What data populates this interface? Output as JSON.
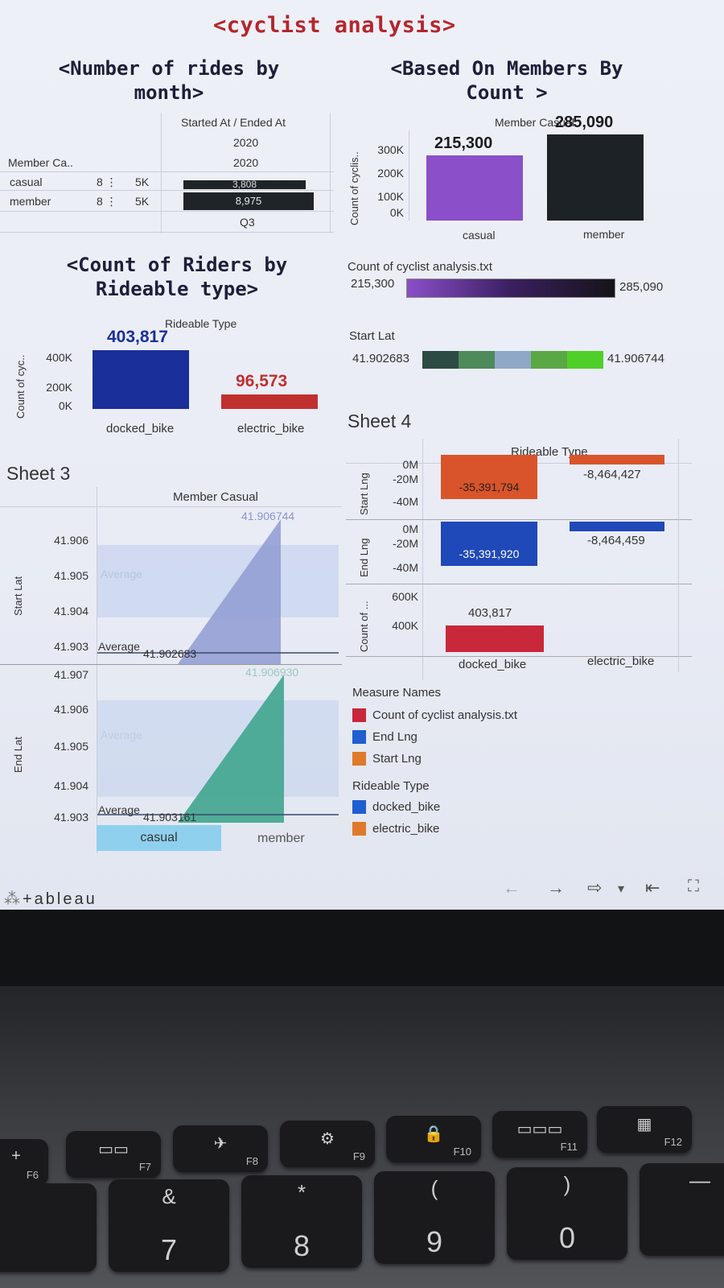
{
  "dashboard_title": "<cyclist analysis>",
  "rides_by_month": {
    "title_line1": "<Number of rides by",
    "title_line2": "month>",
    "col_header": "Started At / Ended At",
    "year1": "2020",
    "year2": "2020",
    "quarter": "Q3",
    "row_header": "Member Ca..",
    "rows": [
      {
        "label": "casual",
        "value": "3,808",
        "scale": "5K"
      },
      {
        "label": "member",
        "value": "8,975",
        "scale": "5K"
      }
    ]
  },
  "members_by_count": {
    "title_line1": "<Based On Members By",
    "title_line2": "Count >",
    "header": "Member Casual",
    "ylabel": "Count of cyclis..",
    "ticks": [
      "300K",
      "200K",
      "100K",
      "0K"
    ],
    "chart_data": {
      "type": "bar",
      "categories": [
        "casual",
        "member"
      ],
      "values": [
        215300,
        285090
      ],
      "value_labels": [
        "215,300",
        "285,090"
      ],
      "ylim": [
        0,
        320000
      ],
      "colors": [
        "#8a4fc9",
        "#1d2226"
      ]
    }
  },
  "count_legend": {
    "title": "Count of cyclist analysis.txt",
    "min": "215,300",
    "max": "285,090"
  },
  "start_lat_legend": {
    "title": "Start Lat",
    "min": "41.902683",
    "max": "41.906744",
    "colors": [
      "#2c4b43",
      "#4f8a5a",
      "#8fa8c7",
      "#5aa845",
      "#4fcf2a"
    ]
  },
  "riders_by_type": {
    "title_line1": "<Count of Riders by",
    "title_line2": "Rideable type>",
    "header": "Rideable Type",
    "ylabel": "Count of cyc..",
    "ticks": [
      "400K",
      "200K",
      "0K"
    ],
    "chart_data": {
      "type": "bar",
      "categories": [
        "docked_bike",
        "electric_bike"
      ],
      "values": [
        403817,
        96573
      ],
      "value_labels": [
        "403,817",
        "96,573"
      ],
      "ylim": [
        0,
        440000
      ],
      "colors": [
        "#1a2f9a",
        "#c0302e"
      ]
    }
  },
  "sheet3": {
    "title": "Sheet 3",
    "header": "Member Casual",
    "categories": [
      "casual",
      "member"
    ],
    "start_lat": {
      "label": "Start Lat",
      "ticks": [
        "41.906",
        "41.905",
        "41.904",
        "41.903"
      ],
      "average_label": "Average",
      "average_value": "41.902683",
      "peak_value": "41.906744",
      "color": "#8f9bd2"
    },
    "end_lat": {
      "label": "End Lat",
      "ticks": [
        "41.907",
        "41.906",
        "41.905",
        "41.904",
        "41.903"
      ],
      "average_label": "Average",
      "average_value": "41.903161",
      "peak_value": "41.906930",
      "color": "#3fa58e"
    }
  },
  "sheet4": {
    "title": "Sheet 4",
    "header": "Rideable Type",
    "categories": [
      "docked_bike",
      "electric_bike"
    ],
    "rows": [
      {
        "label": "Start Lng",
        "ticks": [
          "0M",
          "-20M",
          "-40M"
        ],
        "values": [
          "-35,391,794",
          "-8,464,427"
        ],
        "color": "#d9542b"
      },
      {
        "label": "End Lng",
        "ticks": [
          "0M",
          "-20M",
          "-40M"
        ],
        "values": [
          "-35,391,920",
          "-8,464,459"
        ],
        "color": "#1f48b8"
      },
      {
        "label": "Count of ...",
        "ticks": [
          "600K",
          "400K"
        ],
        "values": [
          "403,817",
          ""
        ],
        "color": "#c8283a"
      }
    ],
    "legend_measures_title": "Measure Names",
    "legend_measures": [
      {
        "label": "Count of cyclist analysis.txt",
        "color": "#c8283a"
      },
      {
        "label": "End Lng",
        "color": "#1f5fd0"
      },
      {
        "label": "Start Lng",
        "color": "#e07a2a"
      }
    ],
    "legend_types_title": "Rideable Type",
    "legend_types": [
      {
        "label": "docked_bike",
        "color": "#1f5fd0"
      },
      {
        "label": "electric_bike",
        "color": "#e07a2a"
      }
    ]
  },
  "footer": {
    "logo": "+ableau",
    "nav_back": "←",
    "nav_forward": "→",
    "nav_share": "⇨",
    "nav_dropdown": "▾",
    "nav_first": "⇤",
    "nav_fullscreen": "⛶"
  },
  "keyboard": {
    "keys": [
      {
        "fn": "F6",
        "sym": "+",
        "big": ""
      },
      {
        "fn": "F7",
        "sym": "▭▭",
        "big": ""
      },
      {
        "fn": "F8",
        "sym": "✈",
        "big": ""
      },
      {
        "fn": "F9",
        "sym": "⚙",
        "big": ""
      },
      {
        "fn": "F10",
        "sym": "🔒",
        "big": ""
      },
      {
        "fn": "F11",
        "sym": "▭▭▭",
        "big": ""
      },
      {
        "fn": "F12",
        "sym": "▦",
        "big": ""
      }
    ],
    "number_keys": [
      {
        "top": "&",
        "big": "7"
      },
      {
        "top": "*",
        "big": "8"
      },
      {
        "top": "(",
        "big": "9"
      },
      {
        "top": ")",
        "big": "0"
      },
      {
        "top": "—",
        "big": ""
      }
    ]
  }
}
